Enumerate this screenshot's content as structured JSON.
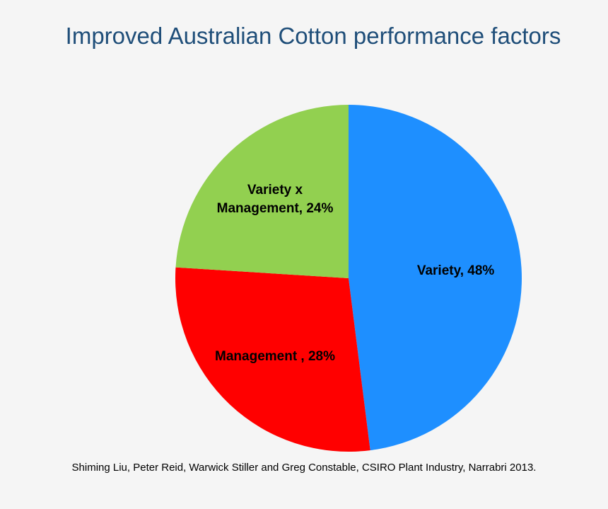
{
  "chart_data": {
    "type": "pie",
    "title": "Improved Australian Cotton performance factors",
    "values": [
      48,
      28,
      24
    ],
    "value_labels": [
      "Variety, 48%",
      "Management , 28%",
      "Variety x Management, 24%"
    ],
    "colors": [
      "#1e8fff",
      "#ff0000",
      "#92d050"
    ],
    "source": "Shiming Liu, Peter Reid, Warwick Stiller and Greg Constable, CSIRO Plant Industry, Narrabri 2013."
  }
}
